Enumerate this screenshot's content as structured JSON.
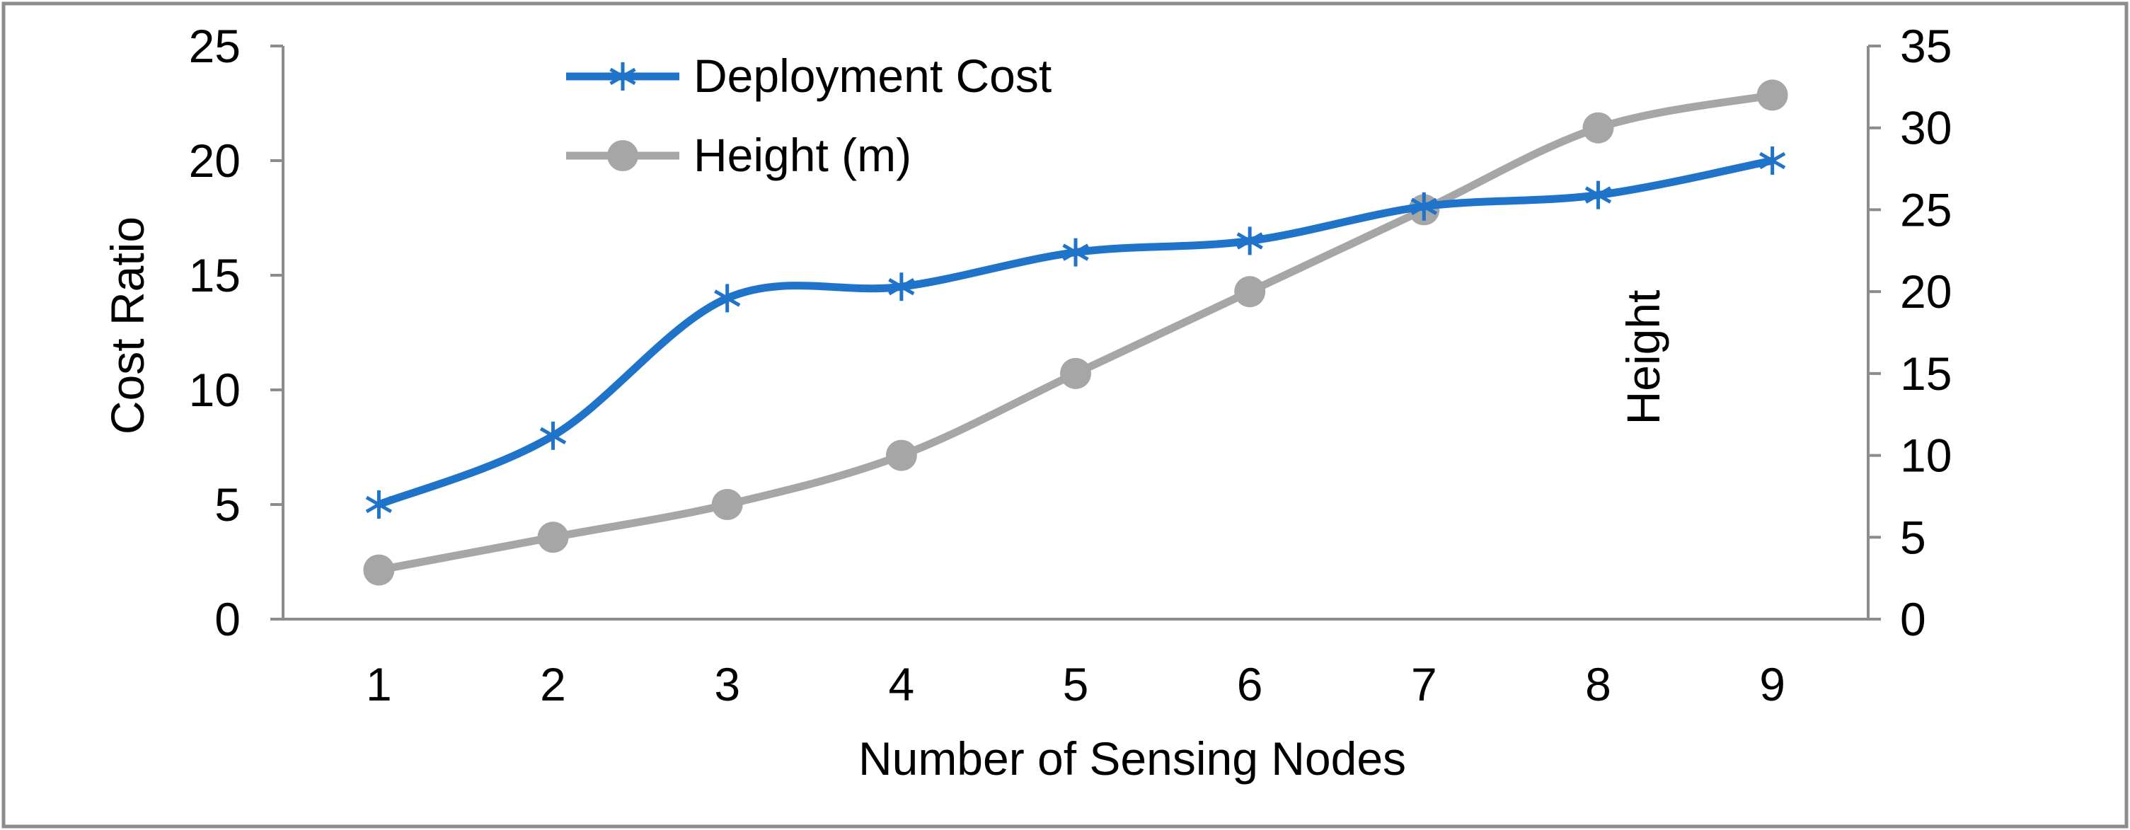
{
  "chart_data": {
    "type": "line",
    "title": "",
    "xlabel": "Number of Sensing Nodes",
    "ylabel": "Cost Ratio",
    "y2label": "Height",
    "x": [
      1,
      2,
      3,
      4,
      5,
      6,
      7,
      8,
      9
    ],
    "ylim": [
      0,
      25
    ],
    "yticks": [
      0,
      5,
      10,
      15,
      20,
      25
    ],
    "y2lim": [
      0,
      35
    ],
    "y2ticks": [
      0,
      5,
      10,
      15,
      20,
      25,
      30,
      35
    ],
    "grid": false,
    "legend_position": "top-left",
    "series": [
      {
        "name": "Deployment Cost",
        "axis": "left",
        "marker": "asterisk",
        "color": "#1f73c9",
        "values": [
          5,
          8,
          14,
          14.5,
          16,
          16.5,
          18,
          18.5,
          20
        ]
      },
      {
        "name": "Height (m)",
        "axis": "right",
        "marker": "circle",
        "color": "#a6a6a6",
        "values": [
          3,
          5,
          7,
          10,
          15,
          20,
          25,
          30,
          32
        ]
      }
    ]
  }
}
